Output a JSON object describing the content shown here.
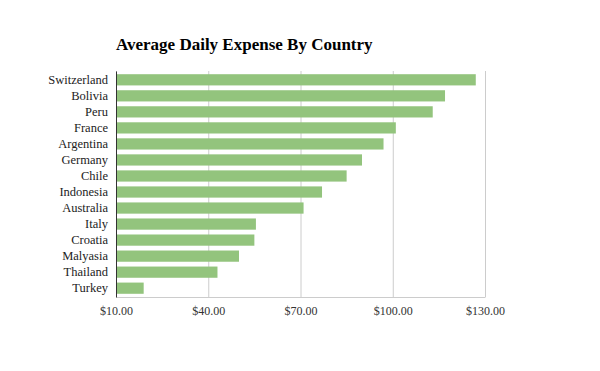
{
  "chart_data": {
    "type": "bar",
    "orientation": "horizontal",
    "title": "Average Daily Expense By Country",
    "categories": [
      "Switzerland",
      "Bolivia",
      "Peru",
      "France",
      "Argentina",
      "Germany",
      "Chile",
      "Indonesia",
      "Australia",
      "Italy",
      "Croatia",
      "Malyasia",
      "Thailand",
      "Turkey"
    ],
    "values": [
      127,
      117,
      113,
      101,
      97,
      90,
      85,
      77,
      71,
      55.5,
      55,
      50,
      43,
      19
    ],
    "color": "#93c47d",
    "xlim": [
      10,
      130
    ],
    "xticks": [
      {
        "value": 10,
        "label": "$10.00"
      },
      {
        "value": 40,
        "label": "$40.00"
      },
      {
        "value": 70,
        "label": "$70.00"
      },
      {
        "value": 100,
        "label": "$100.00"
      },
      {
        "value": 130,
        "label": "$130.00"
      }
    ],
    "grid": true
  }
}
